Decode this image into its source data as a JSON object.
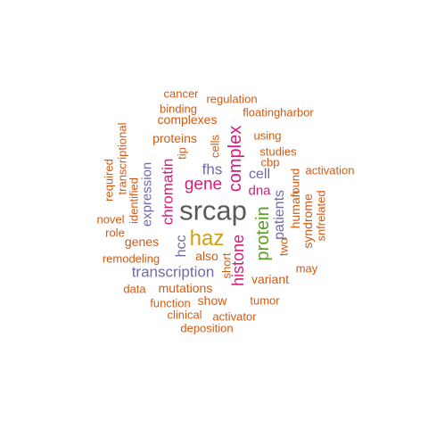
{
  "colors": {
    "dark_gray": "#595959",
    "gold": "#d4a00a",
    "magenta": "#d81b7a",
    "green": "#5a9e25",
    "purple": "#6f6aa8",
    "orange": "#d35a12"
  },
  "words": [
    {
      "text": "srcap",
      "color": "dark_gray"
    },
    {
      "text": "haz",
      "color": "gold"
    },
    {
      "text": "complex",
      "color": "magenta"
    },
    {
      "text": "protein",
      "color": "green"
    },
    {
      "text": "histone",
      "color": "magenta"
    },
    {
      "text": "chromatin",
      "color": "magenta"
    },
    {
      "text": "gene",
      "color": "magenta"
    },
    {
      "text": "fhs",
      "color": "purple"
    },
    {
      "text": "transcription",
      "color": "purple"
    },
    {
      "text": "hcc",
      "color": "purple"
    },
    {
      "text": "patients",
      "color": "purple"
    },
    {
      "text": "cell",
      "color": "purple"
    },
    {
      "text": "expression",
      "color": "purple"
    },
    {
      "text": "dna",
      "color": "magenta"
    },
    {
      "text": "mutations",
      "color": "orange"
    },
    {
      "text": "genes",
      "color": "orange"
    },
    {
      "text": "proteins",
      "color": "orange"
    },
    {
      "text": "complexes",
      "color": "orange"
    },
    {
      "text": "human",
      "color": "orange"
    },
    {
      "text": "also",
      "color": "orange"
    },
    {
      "text": "variant",
      "color": "orange"
    },
    {
      "text": "syndrome",
      "color": "orange"
    },
    {
      "text": "identified",
      "color": "orange"
    },
    {
      "text": "show",
      "color": "orange"
    },
    {
      "text": "found",
      "color": "orange"
    },
    {
      "text": "remodeling",
      "color": "orange"
    },
    {
      "text": "transcriptional",
      "color": "orange"
    },
    {
      "text": "cells",
      "color": "orange"
    },
    {
      "text": "binding",
      "color": "orange"
    },
    {
      "text": "regulation",
      "color": "orange"
    },
    {
      "text": "cancer",
      "color": "orange"
    },
    {
      "text": "floatingharbor",
      "color": "orange"
    },
    {
      "text": "using",
      "color": "orange"
    },
    {
      "text": "studies",
      "color": "orange"
    },
    {
      "text": "cbp",
      "color": "orange"
    },
    {
      "text": "activation",
      "color": "orange"
    },
    {
      "text": "tip",
      "color": "orange"
    },
    {
      "text": "required",
      "color": "orange"
    },
    {
      "text": "novel",
      "color": "orange"
    },
    {
      "text": "role",
      "color": "orange"
    },
    {
      "text": "snfrelated",
      "color": "orange"
    },
    {
      "text": "two",
      "color": "orange"
    },
    {
      "text": "short",
      "color": "orange"
    },
    {
      "text": "may",
      "color": "orange"
    },
    {
      "text": "tumor",
      "color": "orange"
    },
    {
      "text": "data",
      "color": "orange"
    },
    {
      "text": "function",
      "color": "orange"
    },
    {
      "text": "clinical",
      "color": "orange"
    },
    {
      "text": "activator",
      "color": "orange"
    },
    {
      "text": "deposition",
      "color": "orange"
    }
  ]
}
